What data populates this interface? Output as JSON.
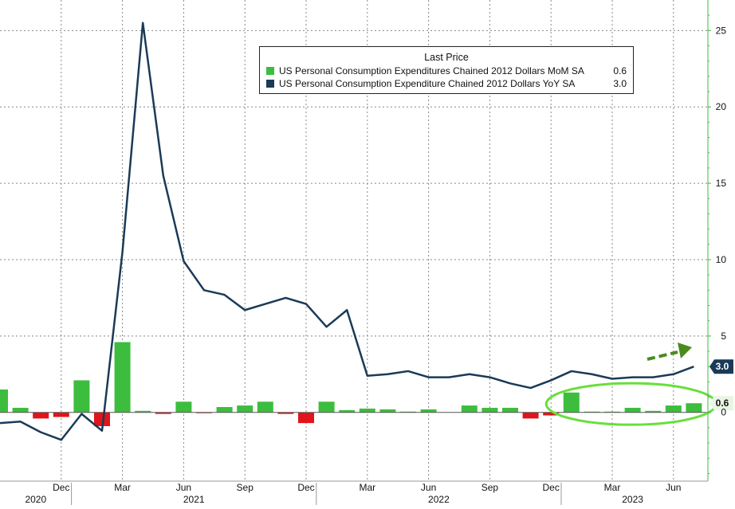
{
  "chart_data": {
    "type": "bar+line",
    "legend": {
      "title": "Last Price",
      "placement": "top-center"
    },
    "y_axis": {
      "side": "right",
      "ticks": [
        0,
        5,
        10,
        15,
        20,
        25
      ],
      "tick_labels": [
        "0",
        "5",
        "10",
        "15",
        "20",
        "25"
      ],
      "ylim": [
        -4.5,
        27
      ]
    },
    "x_axis": {
      "month_ticks": [
        {
          "label": "Dec",
          "date": "2020-12"
        },
        {
          "label": "Mar",
          "date": "2021-03"
        },
        {
          "label": "Jun",
          "date": "2021-06"
        },
        {
          "label": "Sep",
          "date": "2021-09"
        },
        {
          "label": "Dec",
          "date": "2021-12"
        },
        {
          "label": "Mar",
          "date": "2022-03"
        },
        {
          "label": "Jun",
          "date": "2022-06"
        },
        {
          "label": "Sep",
          "date": "2022-09"
        },
        {
          "label": "Dec",
          "date": "2022-12"
        },
        {
          "label": "Mar",
          "date": "2023-03"
        },
        {
          "label": "Jun",
          "date": "2023-06"
        }
      ],
      "years": [
        {
          "label": "2020",
          "from": "2020-09",
          "to": "2020-12"
        },
        {
          "label": "2021",
          "from": "2021-01",
          "to": "2021-12"
        },
        {
          "label": "2022",
          "from": "2022-01",
          "to": "2022-12"
        },
        {
          "label": "2023",
          "from": "2023-01",
          "to": "2023-07"
        }
      ]
    },
    "grid": true,
    "dates": [
      "2020-09",
      "2020-10",
      "2020-11",
      "2020-12",
      "2021-01",
      "2021-02",
      "2021-03",
      "2021-04",
      "2021-05",
      "2021-06",
      "2021-07",
      "2021-08",
      "2021-09",
      "2021-10",
      "2021-11",
      "2021-12",
      "2022-01",
      "2022-02",
      "2022-03",
      "2022-04",
      "2022-05",
      "2022-06",
      "2022-07",
      "2022-08",
      "2022-09",
      "2022-10",
      "2022-11",
      "2022-12",
      "2023-01",
      "2023-02",
      "2023-03",
      "2023-04",
      "2023-05",
      "2023-06",
      "2023-07"
    ],
    "series": [
      {
        "name": "US Personal Consumption Expenditures Chained 2012 Dollars MoM SA",
        "last_value": "0.6",
        "type": "bar",
        "color": "#3dbd3d",
        "negative_color": "#e0141a",
        "values": [
          1.5,
          0.3,
          -0.4,
          -0.3,
          2.1,
          -0.9,
          4.6,
          0.1,
          -0.1,
          0.7,
          -0.05,
          0.35,
          0.45,
          0.7,
          -0.1,
          -0.7,
          0.7,
          0.15,
          0.25,
          0.2,
          0.05,
          0.2,
          0.0,
          0.45,
          0.3,
          0.3,
          -0.4,
          -0.2,
          1.3,
          0.05,
          0.05,
          0.3,
          0.1,
          0.45,
          0.6
        ]
      },
      {
        "name": "US Personal Consumption Expenditure Chained 2012 Dollars YoY SA",
        "last_value": "3.0",
        "type": "line",
        "color": "#1b3a57",
        "values": [
          -0.7,
          -0.6,
          -1.3,
          -1.8,
          -0.1,
          -1.2,
          10.5,
          25.5,
          15.5,
          9.9,
          8.0,
          7.7,
          6.7,
          7.1,
          7.5,
          7.1,
          5.6,
          6.7,
          2.4,
          2.5,
          2.7,
          2.3,
          2.3,
          2.5,
          2.3,
          1.9,
          1.6,
          2.1,
          2.7,
          2.5,
          2.2,
          2.3,
          2.3,
          2.5,
          3.0
        ]
      }
    ],
    "value_tags": [
      {
        "text": "3.0",
        "value": 3.0,
        "color": "#1b3a57",
        "text_color": "#ffffff"
      },
      {
        "text": "0.6",
        "value": 0.6,
        "color": "#e8f5e3",
        "text_color": "#111111"
      }
    ],
    "annotations": {
      "arrow_color": "#4a8a1e",
      "ellipse_color": "#66e03a",
      "ellipse_from": "2022-12",
      "ellipse_to": "2023-07"
    }
  }
}
